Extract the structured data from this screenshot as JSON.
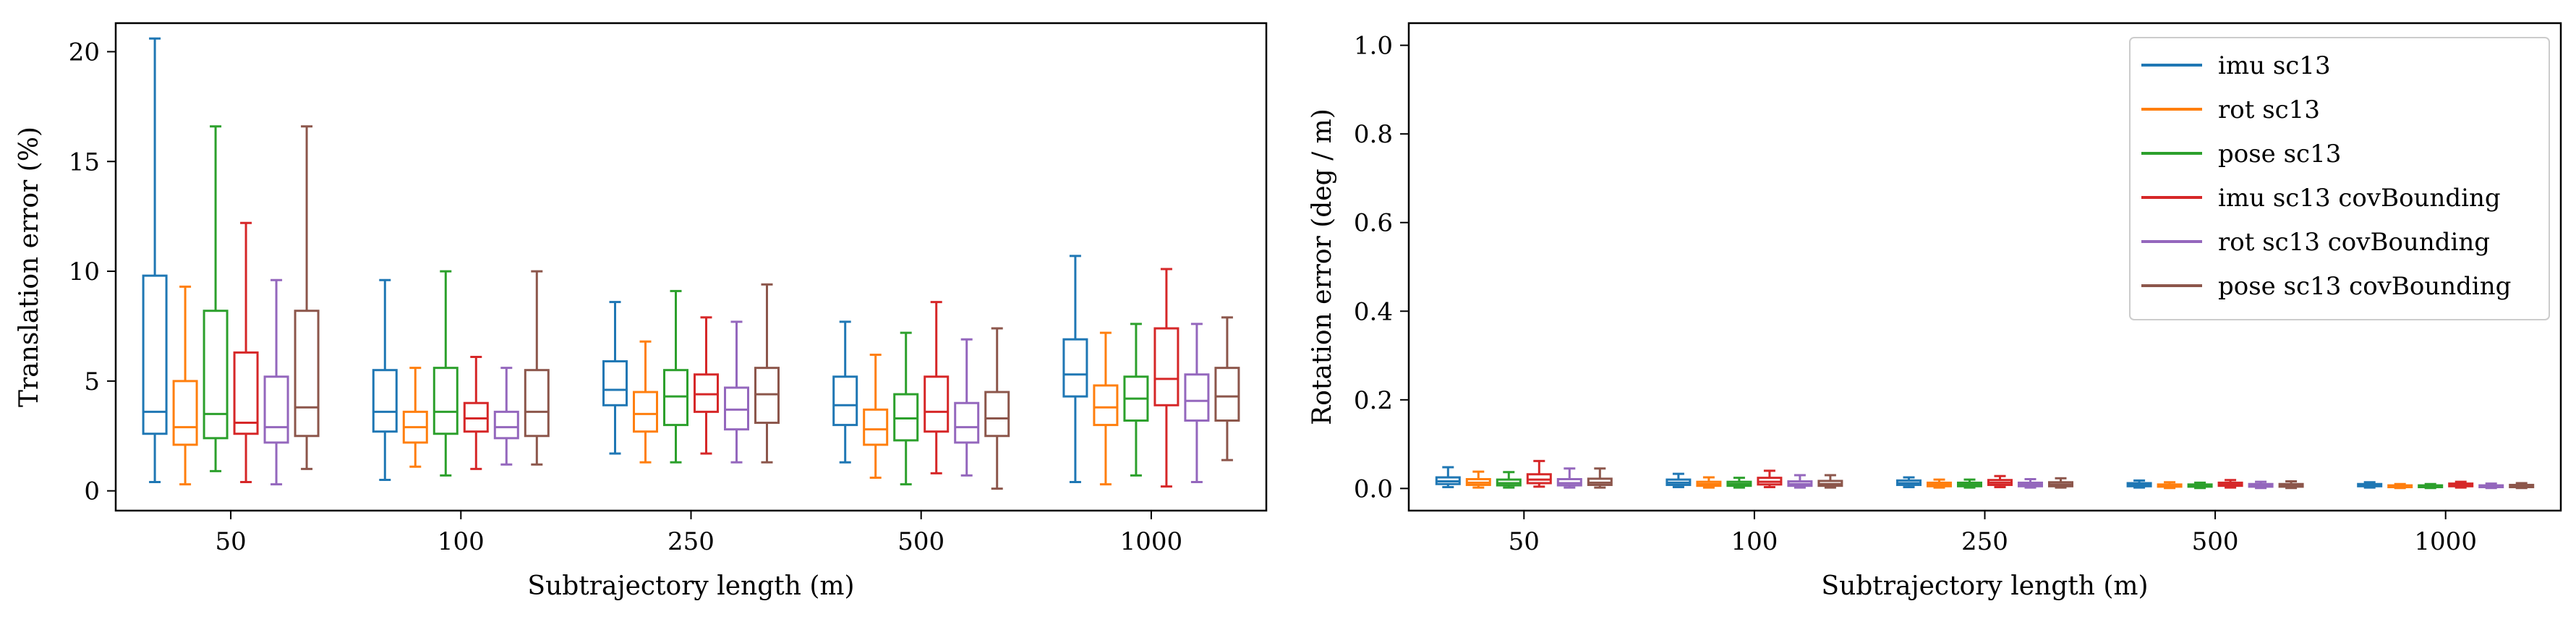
{
  "chart_data": [
    {
      "type": "box",
      "xlabel": "Subtrajectory length (m)",
      "ylabel": "Translation error (%)",
      "categories": [
        "50",
        "100",
        "250",
        "500",
        "1000"
      ],
      "ylim": [
        -0.9,
        21.3
      ],
      "yticks": [
        0,
        5,
        10,
        15,
        20
      ],
      "grid": false,
      "legend": null,
      "series": [
        {
          "name": "imu sc13",
          "color": "#1f77b4",
          "boxes": [
            {
              "whislo": 0.4,
              "q1": 2.6,
              "med": 3.6,
              "q3": 9.8,
              "whishi": 20.6
            },
            {
              "whislo": 0.5,
              "q1": 2.7,
              "med": 3.6,
              "q3": 5.5,
              "whishi": 9.6
            },
            {
              "whislo": 1.7,
              "q1": 3.9,
              "med": 4.6,
              "q3": 5.9,
              "whishi": 8.6
            },
            {
              "whislo": 1.3,
              "q1": 3.0,
              "med": 3.9,
              "q3": 5.2,
              "whishi": 7.7
            },
            {
              "whislo": 0.4,
              "q1": 4.3,
              "med": 5.3,
              "q3": 6.9,
              "whishi": 10.7
            }
          ]
        },
        {
          "name": "rot sc13",
          "color": "#ff7f0e",
          "boxes": [
            {
              "whislo": 0.3,
              "q1": 2.1,
              "med": 2.9,
              "q3": 5.0,
              "whishi": 9.3
            },
            {
              "whislo": 1.1,
              "q1": 2.2,
              "med": 2.9,
              "q3": 3.6,
              "whishi": 5.6
            },
            {
              "whislo": 1.3,
              "q1": 2.7,
              "med": 3.5,
              "q3": 4.5,
              "whishi": 6.8
            },
            {
              "whislo": 0.6,
              "q1": 2.1,
              "med": 2.8,
              "q3": 3.7,
              "whishi": 6.2
            },
            {
              "whislo": 0.3,
              "q1": 3.0,
              "med": 3.8,
              "q3": 4.8,
              "whishi": 7.2
            }
          ]
        },
        {
          "name": "pose sc13",
          "color": "#2ca02c",
          "boxes": [
            {
              "whislo": 0.9,
              "q1": 2.4,
              "med": 3.5,
              "q3": 8.2,
              "whishi": 16.6
            },
            {
              "whislo": 0.7,
              "q1": 2.6,
              "med": 3.6,
              "q3": 5.6,
              "whishi": 10.0
            },
            {
              "whislo": 1.3,
              "q1": 3.0,
              "med": 4.3,
              "q3": 5.5,
              "whishi": 9.1
            },
            {
              "whislo": 0.3,
              "q1": 2.3,
              "med": 3.3,
              "q3": 4.4,
              "whishi": 7.2
            },
            {
              "whislo": 0.7,
              "q1": 3.2,
              "med": 4.2,
              "q3": 5.2,
              "whishi": 7.6
            }
          ]
        },
        {
          "name": "imu sc13 covBounding",
          "color": "#d62728",
          "boxes": [
            {
              "whislo": 0.4,
              "q1": 2.6,
              "med": 3.1,
              "q3": 6.3,
              "whishi": 12.2
            },
            {
              "whislo": 1.0,
              "q1": 2.7,
              "med": 3.3,
              "q3": 4.0,
              "whishi": 6.1
            },
            {
              "whislo": 1.7,
              "q1": 3.6,
              "med": 4.4,
              "q3": 5.3,
              "whishi": 7.9
            },
            {
              "whislo": 0.8,
              "q1": 2.7,
              "med": 3.6,
              "q3": 5.2,
              "whishi": 8.6
            },
            {
              "whislo": 0.2,
              "q1": 3.9,
              "med": 5.1,
              "q3": 7.4,
              "whishi": 10.1
            }
          ]
        },
        {
          "name": "rot sc13 covBounding",
          "color": "#9467bd",
          "boxes": [
            {
              "whislo": 0.3,
              "q1": 2.2,
              "med": 2.9,
              "q3": 5.2,
              "whishi": 9.6
            },
            {
              "whislo": 1.2,
              "q1": 2.4,
              "med": 2.9,
              "q3": 3.6,
              "whishi": 5.6
            },
            {
              "whislo": 1.3,
              "q1": 2.8,
              "med": 3.7,
              "q3": 4.7,
              "whishi": 7.7
            },
            {
              "whislo": 0.7,
              "q1": 2.2,
              "med": 2.9,
              "q3": 4.0,
              "whishi": 6.9
            },
            {
              "whislo": 0.4,
              "q1": 3.2,
              "med": 4.1,
              "q3": 5.3,
              "whishi": 7.6
            }
          ]
        },
        {
          "name": "pose sc13 covBounding",
          "color": "#8c564b",
          "boxes": [
            {
              "whislo": 1.0,
              "q1": 2.5,
              "med": 3.8,
              "q3": 8.2,
              "whishi": 16.6
            },
            {
              "whislo": 1.2,
              "q1": 2.5,
              "med": 3.6,
              "q3": 5.5,
              "whishi": 10.0
            },
            {
              "whislo": 1.3,
              "q1": 3.1,
              "med": 4.4,
              "q3": 5.6,
              "whishi": 9.4
            },
            {
              "whislo": 0.1,
              "q1": 2.5,
              "med": 3.3,
              "q3": 4.5,
              "whishi": 7.4
            },
            {
              "whislo": 1.4,
              "q1": 3.2,
              "med": 4.3,
              "q3": 5.6,
              "whishi": 7.9
            }
          ]
        }
      ]
    },
    {
      "type": "box",
      "xlabel": "Subtrajectory length (m)",
      "ylabel": "Rotation error (deg / m)",
      "categories": [
        "50",
        "100",
        "250",
        "500",
        "1000"
      ],
      "ylim": [
        -0.05,
        1.05
      ],
      "yticks": [
        "0.0",
        "0.2",
        "0.4",
        "0.6",
        "0.8",
        "1.0"
      ],
      "grid": false,
      "legend": "top-right",
      "series": [
        {
          "name": "imu sc13",
          "color": "#1f77b4",
          "boxes": [
            {
              "whislo": 0.003,
              "q1": 0.01,
              "med": 0.016,
              "q3": 0.025,
              "whishi": 0.048
            },
            {
              "whislo": 0.003,
              "q1": 0.008,
              "med": 0.013,
              "q3": 0.02,
              "whishi": 0.033
            },
            {
              "whislo": 0.003,
              "q1": 0.008,
              "med": 0.012,
              "q3": 0.018,
              "whishi": 0.025
            },
            {
              "whislo": 0.002,
              "q1": 0.005,
              "med": 0.008,
              "q3": 0.012,
              "whishi": 0.018
            },
            {
              "whislo": 0.002,
              "q1": 0.005,
              "med": 0.007,
              "q3": 0.01,
              "whishi": 0.014
            }
          ]
        },
        {
          "name": "rot sc13",
          "color": "#ff7f0e",
          "boxes": [
            {
              "whislo": 0.002,
              "q1": 0.008,
              "med": 0.013,
              "q3": 0.021,
              "whishi": 0.038
            },
            {
              "whislo": 0.002,
              "q1": 0.006,
              "med": 0.01,
              "q3": 0.015,
              "whishi": 0.025
            },
            {
              "whislo": 0.002,
              "q1": 0.005,
              "med": 0.009,
              "q3": 0.013,
              "whishi": 0.02
            },
            {
              "whislo": 0.001,
              "q1": 0.004,
              "med": 0.006,
              "q3": 0.009,
              "whishi": 0.014
            },
            {
              "whislo": 0.001,
              "q1": 0.003,
              "med": 0.005,
              "q3": 0.007,
              "whishi": 0.01
            }
          ]
        },
        {
          "name": "pose sc13",
          "color": "#2ca02c",
          "boxes": [
            {
              "whislo": 0.002,
              "q1": 0.007,
              "med": 0.012,
              "q3": 0.02,
              "whishi": 0.037
            },
            {
              "whislo": 0.002,
              "q1": 0.006,
              "med": 0.01,
              "q3": 0.015,
              "whishi": 0.024
            },
            {
              "whislo": 0.002,
              "q1": 0.005,
              "med": 0.009,
              "q3": 0.013,
              "whishi": 0.02
            },
            {
              "whislo": 0.001,
              "q1": 0.004,
              "med": 0.006,
              "q3": 0.009,
              "whishi": 0.013
            },
            {
              "whislo": 0.001,
              "q1": 0.003,
              "med": 0.005,
              "q3": 0.007,
              "whishi": 0.01
            }
          ]
        },
        {
          "name": "imu sc13 covBounding",
          "color": "#d62728",
          "boxes": [
            {
              "whislo": 0.004,
              "q1": 0.012,
              "med": 0.02,
              "q3": 0.032,
              "whishi": 0.062
            },
            {
              "whislo": 0.003,
              "q1": 0.009,
              "med": 0.015,
              "q3": 0.024,
              "whishi": 0.04
            },
            {
              "whislo": 0.003,
              "q1": 0.008,
              "med": 0.013,
              "q3": 0.019,
              "whishi": 0.028
            },
            {
              "whislo": 0.002,
              "q1": 0.006,
              "med": 0.009,
              "q3": 0.013,
              "whishi": 0.019
            },
            {
              "whislo": 0.002,
              "q1": 0.005,
              "med": 0.008,
              "q3": 0.011,
              "whishi": 0.015
            }
          ]
        },
        {
          "name": "rot sc13 covBounding",
          "color": "#9467bd",
          "boxes": [
            {
              "whislo": 0.002,
              "q1": 0.007,
              "med": 0.012,
              "q3": 0.021,
              "whishi": 0.045
            },
            {
              "whislo": 0.002,
              "q1": 0.006,
              "med": 0.01,
              "q3": 0.016,
              "whishi": 0.03
            },
            {
              "whislo": 0.002,
              "q1": 0.005,
              "med": 0.009,
              "q3": 0.013,
              "whishi": 0.021
            },
            {
              "whislo": 0.001,
              "q1": 0.004,
              "med": 0.006,
              "q3": 0.01,
              "whishi": 0.015
            },
            {
              "whislo": 0.001,
              "q1": 0.003,
              "med": 0.005,
              "q3": 0.007,
              "whishi": 0.011
            }
          ]
        },
        {
          "name": "pose sc13 covBounding",
          "color": "#8c564b",
          "boxes": [
            {
              "whislo": 0.002,
              "q1": 0.008,
              "med": 0.013,
              "q3": 0.022,
              "whishi": 0.045
            },
            {
              "whislo": 0.002,
              "q1": 0.006,
              "med": 0.01,
              "q3": 0.017,
              "whishi": 0.03
            },
            {
              "whislo": 0.002,
              "q1": 0.005,
              "med": 0.009,
              "q3": 0.014,
              "whishi": 0.023
            },
            {
              "whislo": 0.001,
              "q1": 0.004,
              "med": 0.007,
              "q3": 0.01,
              "whishi": 0.016
            },
            {
              "whislo": 0.001,
              "q1": 0.003,
              "med": 0.005,
              "q3": 0.008,
              "whishi": 0.012
            }
          ]
        }
      ]
    }
  ]
}
